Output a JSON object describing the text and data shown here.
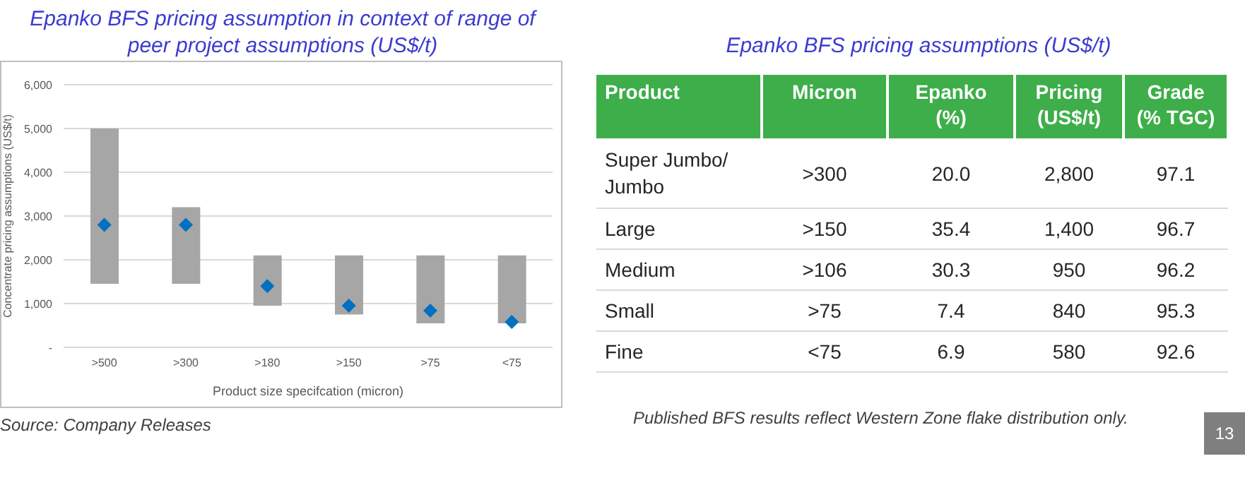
{
  "chart_data": [
    {
      "type": "bar",
      "title": "Epanko BFS pricing assumption in context of range of peer project assumptions (US$/t)",
      "xlabel": "Product size specifcation (micron)",
      "ylabel": "Concentrate pricing assumptions (US$/t)",
      "categories": [
        ">500",
        ">300",
        ">180",
        ">150",
        ">75",
        "<75"
      ],
      "series": [
        {
          "type": "bar",
          "color": "#a6a6a6",
          "base": [
            1450,
            1450,
            950,
            750,
            550,
            550
          ],
          "values": [
            3550,
            1750,
            1150,
            1350,
            1550,
            1550
          ]
        },
        {
          "type": "scatter",
          "color": "#0070c0",
          "marker": "diamond",
          "x": [
            ">500",
            ">300",
            ">180",
            ">150",
            ">75",
            "<75"
          ],
          "values": [
            2800,
            2800,
            1400,
            950,
            840,
            580
          ]
        }
      ],
      "ylim": [
        0,
        6000
      ],
      "yticks": [
        {
          "value": 0,
          "label": "-"
        },
        {
          "value": 1000,
          "label": "1,000"
        },
        {
          "value": 2000,
          "label": "2,000"
        },
        {
          "value": 3000,
          "label": "3,000"
        },
        {
          "value": 4000,
          "label": "4,000"
        },
        {
          "value": 5000,
          "label": "5,000"
        },
        {
          "value": 6000,
          "label": "6,000"
        }
      ],
      "grid": "y",
      "annotations": [
        "Source: Company Releases"
      ]
    },
    {
      "type": "other",
      "title": "Epanko BFS pricing assumptions (US$/t)",
      "ylabel": "Product",
      "categories": [
        "Micron",
        "Epanko (%)",
        "Pricing (US$/t)",
        "Grade (% TGC)"
      ],
      "y_categories": [
        "Super Jumbo/ Jumbo",
        "Large",
        "Medium",
        "Small",
        "Fine"
      ],
      "cell_labels": [
        [
          ">300",
          "20.0",
          "2,800",
          "97.1"
        ],
        [
          ">150",
          "35.4",
          "1,400",
          "96.7"
        ],
        [
          ">106",
          "30.3",
          "950",
          "96.2"
        ],
        [
          ">75",
          "7.4",
          "840",
          "95.3"
        ],
        [
          "<75",
          "6.9",
          "580",
          "92.6"
        ]
      ],
      "annotations": [
        "Published BFS results reflect Western Zone flake distribution only.",
        "13"
      ]
    }
  ]
}
